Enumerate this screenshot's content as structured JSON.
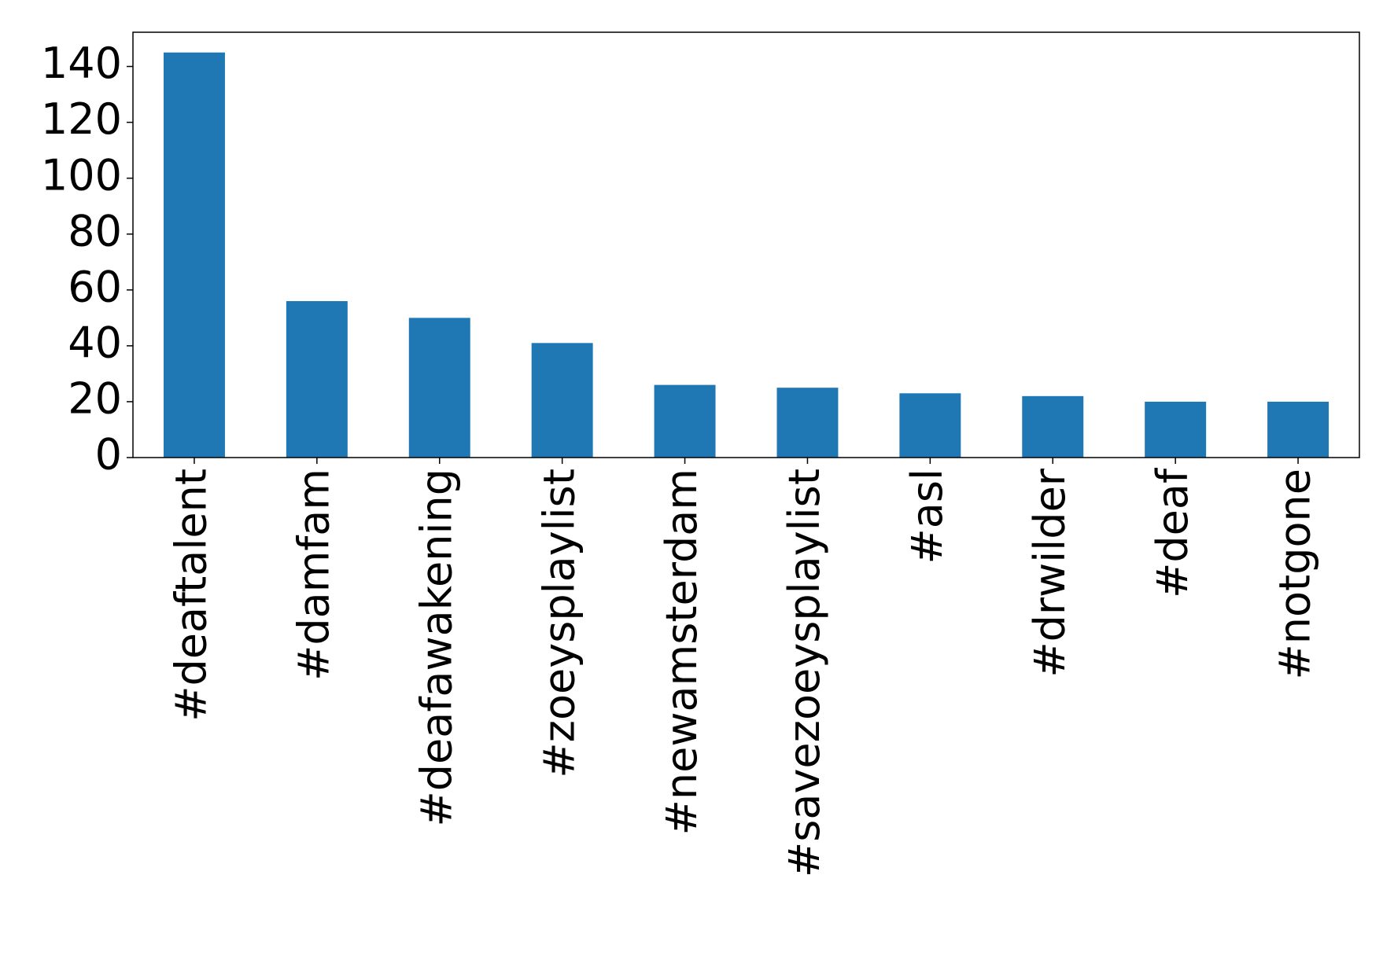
{
  "chart_data": {
    "type": "bar",
    "categories": [
      "#deaftalent",
      "#damfam",
      "#deafawakening",
      "#zoeysplaylist",
      "#newamsterdam",
      "#savezoeysplaylist",
      "#asl",
      "#drwilder",
      "#deaf",
      "#notgone"
    ],
    "values": [
      145,
      56,
      50,
      41,
      26,
      25,
      23,
      22,
      20,
      20
    ],
    "color": "#1f77b4",
    "ylim": [
      0,
      152.25
    ],
    "yticks": [
      0,
      20,
      40,
      60,
      80,
      100,
      120,
      140
    ],
    "grid": false
  }
}
